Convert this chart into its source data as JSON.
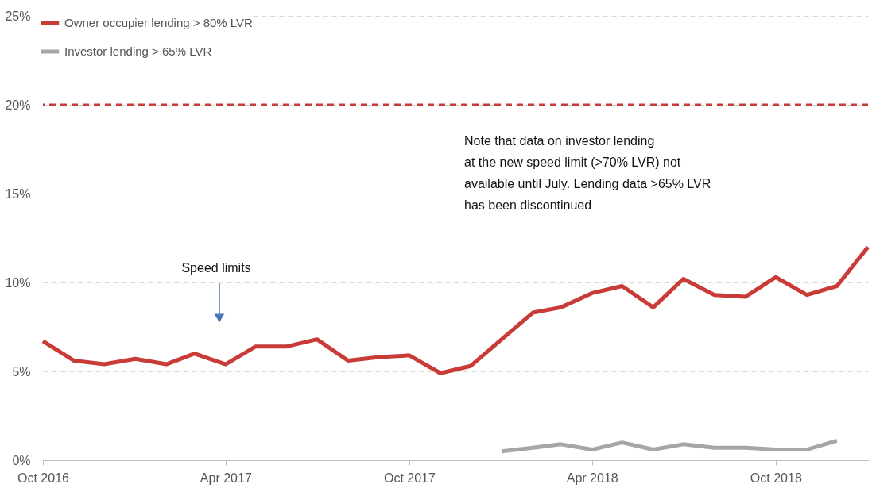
{
  "chart_data": {
    "type": "line",
    "x": [
      "2016-10",
      "2016-11",
      "2016-12",
      "2017-01",
      "2017-02",
      "2017-03",
      "2017-04",
      "2017-05",
      "2017-06",
      "2017-07",
      "2017-08",
      "2017-09",
      "2017-10",
      "2017-11",
      "2017-12",
      "2018-01",
      "2018-02",
      "2018-03",
      "2018-04",
      "2018-05",
      "2018-06",
      "2018-07",
      "2018-08",
      "2018-09",
      "2018-10",
      "2018-11",
      "2018-12",
      "2019-01"
    ],
    "series": [
      {
        "name": "Owner occupier lending > 80% LVR",
        "color": "#c83b37",
        "values": [
          6.7,
          5.6,
          5.4,
          5.7,
          5.4,
          6.0,
          5.4,
          6.4,
          6.4,
          6.8,
          5.6,
          5.8,
          5.9,
          4.9,
          5.3,
          6.8,
          8.3,
          8.6,
          9.4,
          9.8,
          8.6,
          10.2,
          9.3,
          9.2,
          10.3,
          9.3,
          9.8,
          12.0
        ]
      },
      {
        "name": "Investor lending > 65% LVR",
        "color": "#a6a6a6",
        "x": [
          "2018-01",
          "2018-02",
          "2018-03",
          "2018-04",
          "2018-05",
          "2018-06",
          "2018-07",
          "2018-08",
          "2018-09",
          "2018-10",
          "2018-11",
          "2018-12"
        ],
        "values": [
          0.5,
          0.7,
          0.9,
          0.6,
          1.0,
          0.6,
          0.9,
          0.7,
          0.7,
          0.6,
          0.6,
          1.1
        ]
      }
    ],
    "xlim": [
      "2016-10",
      "2019-01"
    ],
    "xticks": [
      {
        "value": "2016-10",
        "label": "Oct 2016"
      },
      {
        "value": "2017-04",
        "label": "Apr 2017"
      },
      {
        "value": "2017-10",
        "label": "Oct 2017"
      },
      {
        "value": "2018-04",
        "label": "Apr 2018"
      },
      {
        "value": "2018-10",
        "label": "Oct 2018"
      }
    ],
    "ylim": [
      0,
      25
    ],
    "yticks": [
      {
        "value": 0,
        "label": "0%"
      },
      {
        "value": 5,
        "label": "5%"
      },
      {
        "value": 10,
        "label": "10%"
      },
      {
        "value": 15,
        "label": "15%"
      },
      {
        "value": 20,
        "label": "20%"
      },
      {
        "value": 25,
        "label": "25%"
      }
    ],
    "ref_lines": [
      {
        "axis": "y",
        "value": 20,
        "color": "#c83b37",
        "line_style": "dashed"
      }
    ],
    "annotations": [
      "Speed limits",
      "Note that data on investor lending\nat the new speed limit (>70% LVR) not\navailable until July. Lending data >65% LVR\nhas been discontinued"
    ],
    "grid": "y",
    "legend": "top left",
    "line_style": "solid",
    "marker": "none"
  }
}
